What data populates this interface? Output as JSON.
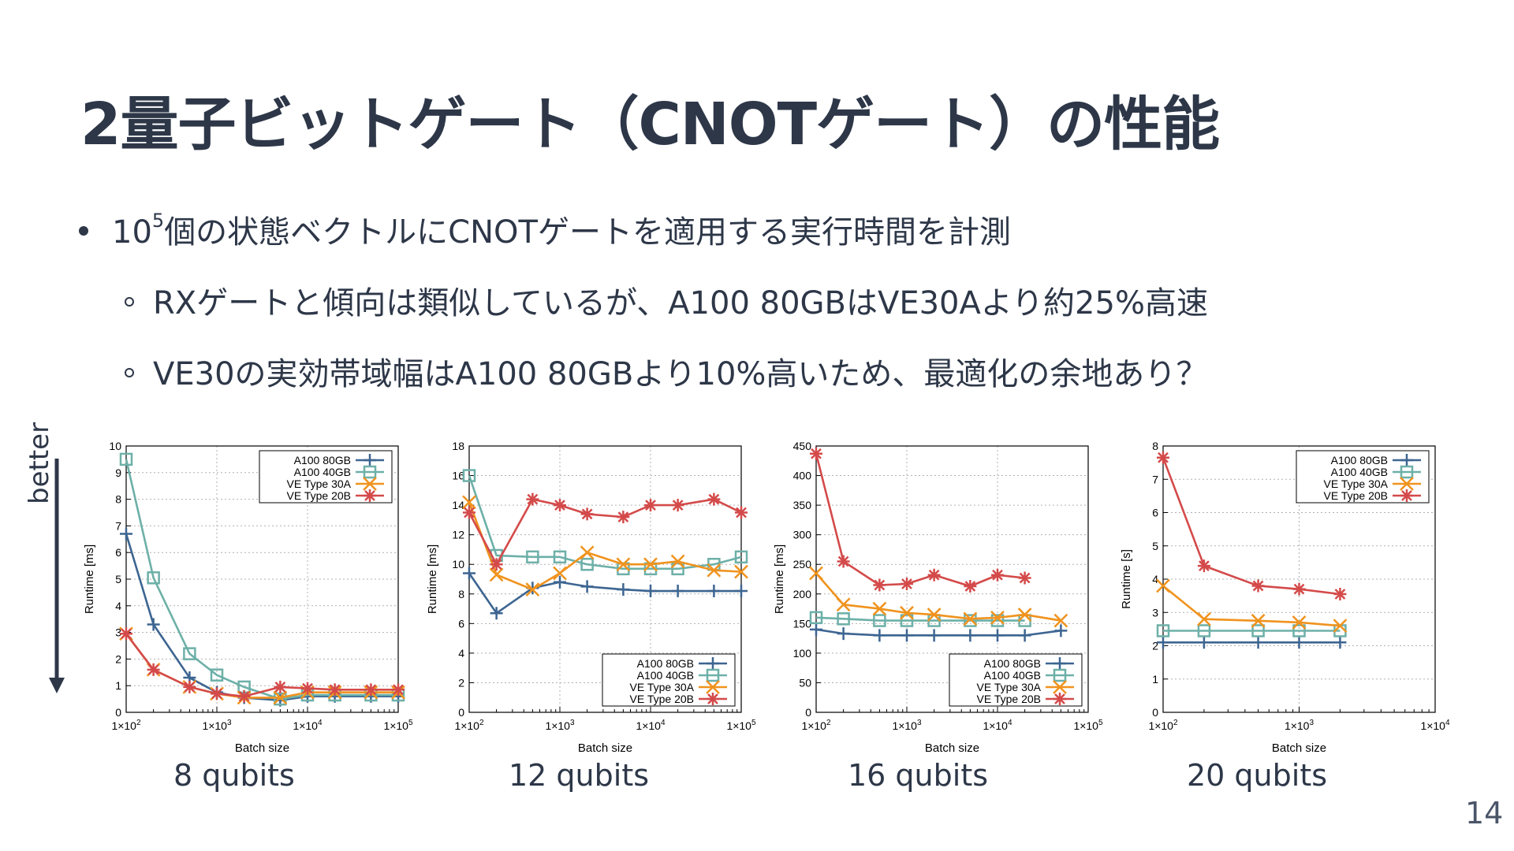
{
  "slide": {
    "title": "2量子ビットゲート（CNOTゲート）の性能",
    "bullet1_pre": "10",
    "bullet1_sup": "5",
    "bullet1_post": "個の状態ベクトルにCNOTゲートを適用する実行時間を計測",
    "bullet2": "RXゲートと傾向は類似しているが、A100 80GBはVE30Aより約25%高速",
    "bullet3": "VE30の実効帯域幅はA100 80GBより10%高いため、最適化の余地あり？",
    "better_label": "better",
    "page_number": "14"
  },
  "colors": {
    "A100 80GB": "#3d6591",
    "A100 40GB": "#6db0a8",
    "VE Type 30A": "#f0931e",
    "VE Type 20B": "#d44a4a"
  },
  "chart_data": [
    {
      "type": "line",
      "caption": "8 qubits",
      "xscale": "log",
      "xlim": [
        100,
        100000
      ],
      "ylim": [
        0,
        10
      ],
      "yticks": [
        0,
        1,
        2,
        3,
        4,
        5,
        6,
        7,
        8,
        9,
        10
      ],
      "xlabel": "Batch size",
      "ylabel": "Runtime [ms]",
      "legend": "top-right",
      "series": [
        {
          "name": "A100 80GB",
          "marker": "plus",
          "x": [
            100,
            200,
            500,
            1000,
            2000,
            5000,
            10000,
            20000,
            50000,
            100000
          ],
          "y": [
            6.7,
            3.3,
            1.3,
            0.75,
            0.55,
            0.45,
            0.6,
            0.6,
            0.6,
            0.6
          ]
        },
        {
          "name": "A100 40GB",
          "marker": "square",
          "x": [
            100,
            200,
            500,
            1000,
            2000,
            5000,
            10000,
            20000,
            50000,
            100000
          ],
          "y": [
            9.5,
            5.05,
            2.2,
            1.4,
            0.95,
            0.5,
            0.65,
            0.65,
            0.65,
            0.65
          ]
        },
        {
          "name": "VE Type 30A",
          "marker": "x",
          "x": [
            100,
            200,
            500,
            1000,
            2000,
            5000,
            10000,
            20000,
            50000,
            100000
          ],
          "y": [
            2.95,
            1.6,
            0.95,
            0.7,
            0.55,
            0.55,
            0.75,
            0.75,
            0.75,
            0.75
          ]
        },
        {
          "name": "VE Type 20B",
          "marker": "star",
          "x": [
            100,
            200,
            500,
            1000,
            2000,
            5000,
            10000,
            20000,
            50000,
            100000
          ],
          "y": [
            2.95,
            1.6,
            0.95,
            0.7,
            0.6,
            0.95,
            0.9,
            0.85,
            0.85,
            0.85
          ]
        }
      ]
    },
    {
      "type": "line",
      "caption": "12 qubits",
      "xscale": "log",
      "xlim": [
        100,
        100000
      ],
      "ylim": [
        0,
        18
      ],
      "yticks": [
        0,
        2,
        4,
        6,
        8,
        10,
        12,
        14,
        16,
        18
      ],
      "xlabel": "Batch size",
      "ylabel": "Runtime [ms]",
      "legend": "bottom-right",
      "series": [
        {
          "name": "A100 80GB",
          "marker": "plus",
          "x": [
            100,
            200,
            500,
            1000,
            2000,
            5000,
            10000,
            20000,
            50000,
            100000
          ],
          "y": [
            9.4,
            6.7,
            8.4,
            8.8,
            8.5,
            8.3,
            8.2,
            8.2,
            8.2,
            8.2
          ]
        },
        {
          "name": "A100 40GB",
          "marker": "square",
          "x": [
            100,
            200,
            500,
            1000,
            2000,
            5000,
            10000,
            20000,
            50000,
            100000
          ],
          "y": [
            16.0,
            10.6,
            10.5,
            10.5,
            10.0,
            9.7,
            9.7,
            9.7,
            10.0,
            10.5
          ]
        },
        {
          "name": "VE Type 30A",
          "marker": "x",
          "x": [
            100,
            200,
            500,
            1000,
            2000,
            5000,
            10000,
            20000,
            50000,
            100000
          ],
          "y": [
            14.2,
            9.3,
            8.3,
            9.4,
            10.8,
            10.0,
            10.0,
            10.2,
            9.6,
            9.5
          ]
        },
        {
          "name": "VE Type 20B",
          "marker": "star",
          "x": [
            100,
            200,
            500,
            1000,
            2000,
            5000,
            10000,
            20000,
            50000,
            100000
          ],
          "y": [
            13.5,
            10.0,
            14.4,
            14.0,
            13.4,
            13.2,
            14.0,
            14.0,
            14.4,
            13.5
          ]
        }
      ]
    },
    {
      "type": "line",
      "caption": "16 qubits",
      "xscale": "log",
      "xlim": [
        100,
        100000
      ],
      "ylim": [
        0,
        450
      ],
      "yticks": [
        0,
        50,
        100,
        150,
        200,
        250,
        300,
        350,
        400,
        450
      ],
      "xlabel": "Batch size",
      "ylabel": "Runtime [ms]",
      "legend": "bottom-right",
      "series": [
        {
          "name": "A100 80GB",
          "marker": "plus",
          "x": [
            100,
            200,
            500,
            1000,
            2000,
            5000,
            10000,
            20000,
            50000
          ],
          "y": [
            140,
            133,
            130,
            130,
            130,
            130,
            130,
            130,
            138
          ]
        },
        {
          "name": "A100 40GB",
          "marker": "square",
          "x": [
            100,
            200,
            500,
            1000,
            2000,
            5000,
            10000,
            20000
          ],
          "y": [
            160,
            158,
            155,
            155,
            155,
            155,
            155,
            155
          ]
        },
        {
          "name": "VE Type 30A",
          "marker": "x",
          "x": [
            100,
            200,
            500,
            1000,
            2000,
            5000,
            10000,
            20000,
            50000
          ],
          "y": [
            235,
            182,
            175,
            168,
            165,
            158,
            160,
            165,
            155
          ]
        },
        {
          "name": "VE Type 20B",
          "marker": "star",
          "x": [
            100,
            200,
            500,
            1000,
            2000,
            5000,
            10000,
            20000
          ],
          "y": [
            437,
            255,
            215,
            217,
            232,
            213,
            232,
            227
          ]
        }
      ]
    },
    {
      "type": "line",
      "caption": "20 qubits",
      "xscale": "log",
      "xlim": [
        100,
        10000
      ],
      "ylim": [
        0,
        8
      ],
      "yticks": [
        0,
        1,
        2,
        3,
        4,
        5,
        6,
        7,
        8
      ],
      "xlabel": "Batch size",
      "ylabel": "Runtime [s]",
      "legend": "top-right",
      "series": [
        {
          "name": "A100 80GB",
          "marker": "plus",
          "x": [
            100,
            200,
            500,
            1000,
            2000
          ],
          "y": [
            2.1,
            2.1,
            2.1,
            2.1,
            2.1
          ]
        },
        {
          "name": "A100 40GB",
          "marker": "square",
          "x": [
            100,
            200,
            500,
            1000,
            2000
          ],
          "y": [
            2.45,
            2.45,
            2.45,
            2.45,
            2.45
          ]
        },
        {
          "name": "VE Type 30A",
          "marker": "x",
          "x": [
            100,
            200,
            500,
            1000,
            2000
          ],
          "y": [
            3.8,
            2.8,
            2.75,
            2.7,
            2.6
          ]
        },
        {
          "name": "VE Type 20B",
          "marker": "star",
          "x": [
            100,
            200,
            500,
            1000,
            2000
          ],
          "y": [
            7.65,
            4.4,
            3.8,
            3.7,
            3.55
          ]
        }
      ]
    }
  ]
}
